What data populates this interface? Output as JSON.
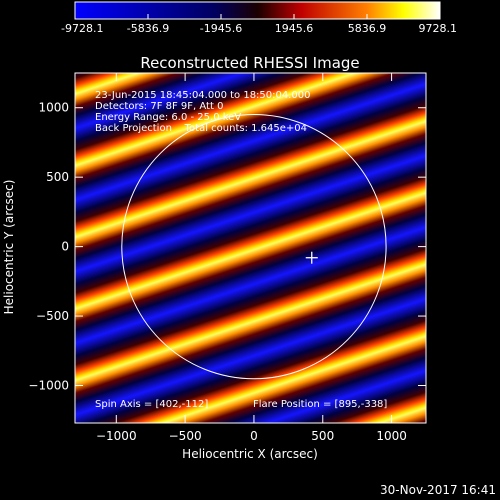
{
  "colorbar": {
    "ticks": [
      "-9728.1",
      "-5836.9",
      "-1945.6",
      "1945.6",
      "5836.9",
      "9728.1"
    ],
    "min": -9728.1,
    "max": 9728.1,
    "palette": [
      "#0000ff",
      "#000000",
      "#ff0000",
      "#ffff00",
      "#ffffff"
    ]
  },
  "chart_data": {
    "type": "heatmap",
    "title": "Reconstructed RHESSI Image",
    "xlabel": "Heliocentric X (arcsec)",
    "ylabel": "Heliocentric Y (arcsec)",
    "xlim": [
      -1300,
      1250
    ],
    "ylim": [
      -1270,
      1250
    ],
    "xticks": [
      -1000,
      -500,
      0,
      500,
      1000
    ],
    "yticks": [
      -1000,
      -500,
      0,
      500,
      1000
    ],
    "xtick_labels": [
      "−1000",
      "−500",
      "0",
      "500",
      "1000"
    ],
    "ytick_labels": [
      "−1000",
      "−500",
      "0",
      "500",
      "1000"
    ],
    "pattern": {
      "stripe_slope_dy_dx": -0.33,
      "stripe_spacing_arcsec": 210,
      "stripe_offset_arcsec": 60
    },
    "solar_disk": {
      "center": [
        0,
        0
      ],
      "radius": 960
    },
    "flare_marker": [
      420,
      -80
    ],
    "annotations": {
      "line1": "23-Jun-2015 18:45:04.000 to 18:50:04.000",
      "line2": "Detectors: 7F 8F 9F, Att 0",
      "line3": "Energy Range: 6.0 - 25.0 keV",
      "line4": "Back Projection    Total counts: 1.645e+04",
      "spin_axis": "Spin Axis = [402,-112]",
      "flare_position": "Flare Position = [895,-338]"
    }
  },
  "timestamp": "30-Nov-2017 16:41"
}
